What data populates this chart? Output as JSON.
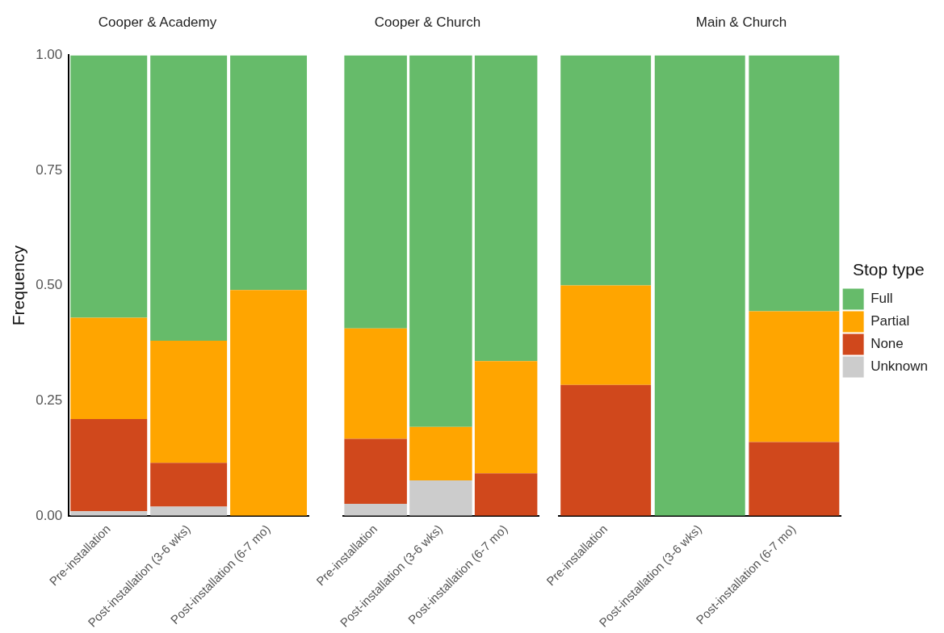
{
  "chart_data": [
    {
      "type": "bar",
      "title": "Cooper & Academy",
      "ylabel": "Frequency",
      "categories": [
        "Pre-installation",
        "Post-installation (3-6 wks)",
        "Post-installation (6-7 mo)"
      ],
      "stacked": true,
      "ylim": [
        0,
        1
      ],
      "yticks": [
        {
          "value": 0,
          "label": "0.00"
        },
        {
          "value": 0.25,
          "label": "0.25"
        },
        {
          "value": 0.5,
          "label": "0.50"
        },
        {
          "value": 0.75,
          "label": "0.75"
        },
        {
          "value": 1,
          "label": "1.00"
        }
      ],
      "grid": false,
      "legend": false,
      "series": [
        {
          "color": "#cccccc",
          "values": [
            0.01,
            0.02,
            0
          ]
        },
        {
          "color": "#d0481c",
          "values": [
            0.2,
            0.095,
            0
          ]
        },
        {
          "color": "#ffa500",
          "values": [
            0.22,
            0.265,
            0.49
          ]
        },
        {
          "color": "#66bb6a",
          "values": [
            0.57,
            0.62,
            0.51
          ]
        }
      ]
    },
    {
      "type": "bar",
      "title": "Cooper & Church",
      "categories": [
        "Pre-installation",
        "Post-installation (3-6 wks)",
        "Post-installation (6-7 mo)"
      ],
      "stacked": true,
      "ylim": [
        0,
        1
      ],
      "tick_labels": "x",
      "grid": false,
      "legend": false,
      "series": [
        {
          "color": "#cccccc",
          "values": [
            0.026,
            0.077,
            0
          ]
        },
        {
          "color": "#d0481c",
          "values": [
            0.141,
            0,
            0.092
          ]
        },
        {
          "color": "#ffa500",
          "values": [
            0.24,
            0.116,
            0.244
          ]
        },
        {
          "color": "#66bb6a",
          "values": [
            0.593,
            0.807,
            0.664
          ]
        }
      ]
    },
    {
      "type": "bar",
      "title": "Main & Church",
      "categories": [
        "Pre-installation",
        "Post-installation (3-6 wks)",
        "Post-installation (6-7 mo)"
      ],
      "stacked": true,
      "ylim": [
        0,
        1
      ],
      "tick_labels": "x",
      "grid": false,
      "legend": "right",
      "legend_title": "Stop type",
      "series": [
        {
          "name": "Unknown",
          "color": "#cccccc",
          "values": [
            0,
            0,
            0
          ]
        },
        {
          "name": "None",
          "color": "#d0481c",
          "values": [
            0.284,
            0,
            0.16
          ]
        },
        {
          "name": "Partial",
          "color": "#ffa500",
          "values": [
            0.216,
            0,
            0.284
          ]
        },
        {
          "name": "Full",
          "color": "#66bb6a",
          "values": [
            0.5,
            1,
            0.556
          ]
        }
      ]
    }
  ]
}
